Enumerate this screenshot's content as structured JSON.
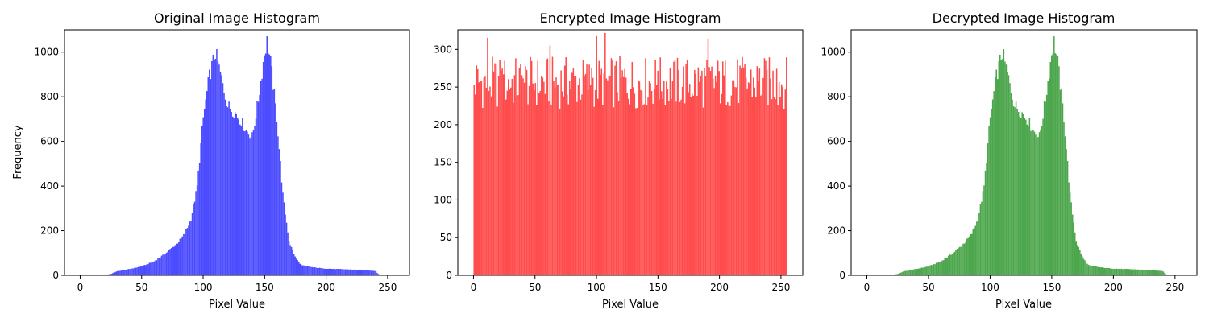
{
  "chart_data": [
    {
      "type": "bar",
      "title": "Original Image Histogram",
      "xlabel": "Pixel Value",
      "ylabel": "Frequency",
      "xlim": [
        -12.75,
        267.75
      ],
      "ylim": [
        0,
        1100
      ],
      "xticks": [
        0,
        50,
        100,
        150,
        200,
        250
      ],
      "yticks": [
        0,
        200,
        400,
        600,
        800,
        1000
      ],
      "color": "#4b4bff",
      "bins": 256,
      "profile": [
        [
          0,
          0
        ],
        [
          15,
          0
        ],
        [
          20,
          2
        ],
        [
          25,
          6
        ],
        [
          30,
          18
        ],
        [
          40,
          28
        ],
        [
          50,
          40
        ],
        [
          60,
          62
        ],
        [
          70,
          100
        ],
        [
          80,
          150
        ],
        [
          85,
          185
        ],
        [
          90,
          250
        ],
        [
          95,
          390
        ],
        [
          100,
          700
        ],
        [
          105,
          890
        ],
        [
          110,
          1000
        ],
        [
          115,
          880
        ],
        [
          120,
          760
        ],
        [
          125,
          735
        ],
        [
          130,
          700
        ],
        [
          135,
          650
        ],
        [
          140,
          620
        ],
        [
          145,
          790
        ],
        [
          150,
          1000
        ],
        [
          152,
          1050
        ],
        [
          155,
          950
        ],
        [
          160,
          700
        ],
        [
          165,
          350
        ],
        [
          170,
          150
        ],
        [
          175,
          80
        ],
        [
          180,
          45
        ],
        [
          190,
          35
        ],
        [
          200,
          30
        ],
        [
          220,
          26
        ],
        [
          240,
          20
        ],
        [
          242,
          8
        ],
        [
          244,
          0
        ],
        [
          255,
          0
        ]
      ]
    },
    {
      "type": "bar",
      "title": "Encrypted Image Histogram",
      "xlabel": "Pixel Value",
      "ylabel": "",
      "xlim": [
        -12.75,
        267.75
      ],
      "ylim": [
        0,
        326
      ],
      "xticks": [
        0,
        50,
        100,
        150,
        200,
        250
      ],
      "yticks": [
        0,
        50,
        100,
        150,
        200,
        250,
        300
      ],
      "color": "#ff4b4b",
      "bins": 256,
      "profile": [
        [
          0,
          256
        ],
        [
          255,
          256
        ]
      ]
    },
    {
      "type": "bar",
      "title": "Decrypted Image Histogram",
      "xlabel": "Pixel Value",
      "ylabel": "",
      "xlim": [
        -12.75,
        267.75
      ],
      "ylim": [
        0,
        1100
      ],
      "xticks": [
        0,
        50,
        100,
        150,
        200,
        250
      ],
      "yticks": [
        0,
        200,
        400,
        600,
        800,
        1000
      ],
      "color": "#4ca64c",
      "bins": 256,
      "profile": [
        [
          0,
          0
        ],
        [
          15,
          0
        ],
        [
          20,
          2
        ],
        [
          25,
          6
        ],
        [
          30,
          18
        ],
        [
          40,
          28
        ],
        [
          50,
          40
        ],
        [
          60,
          62
        ],
        [
          70,
          100
        ],
        [
          80,
          150
        ],
        [
          85,
          185
        ],
        [
          90,
          250
        ],
        [
          95,
          390
        ],
        [
          100,
          700
        ],
        [
          105,
          890
        ],
        [
          110,
          1000
        ],
        [
          115,
          880
        ],
        [
          120,
          760
        ],
        [
          125,
          735
        ],
        [
          130,
          700
        ],
        [
          135,
          650
        ],
        [
          140,
          620
        ],
        [
          145,
          790
        ],
        [
          150,
          1000
        ],
        [
          152,
          1050
        ],
        [
          155,
          950
        ],
        [
          160,
          700
        ],
        [
          165,
          350
        ],
        [
          170,
          150
        ],
        [
          175,
          80
        ],
        [
          180,
          45
        ],
        [
          190,
          35
        ],
        [
          200,
          30
        ],
        [
          220,
          26
        ],
        [
          240,
          20
        ],
        [
          242,
          8
        ],
        [
          244,
          0
        ],
        [
          255,
          0
        ]
      ]
    }
  ]
}
